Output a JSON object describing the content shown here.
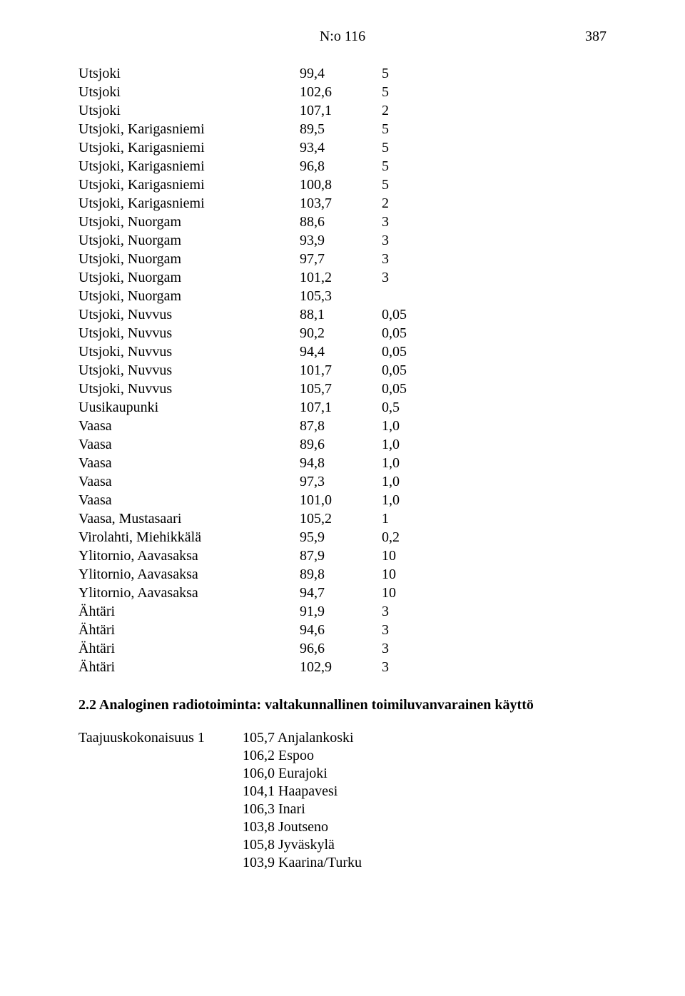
{
  "header": {
    "doc_number": "N:o 116",
    "page_number": "387"
  },
  "table": {
    "rows": [
      {
        "name": "Utsjoki",
        "v1": "99,4",
        "v2": "5"
      },
      {
        "name": "Utsjoki",
        "v1": "102,6",
        "v2": "5"
      },
      {
        "name": "Utsjoki",
        "v1": "107,1",
        "v2": "2"
      },
      {
        "name": "Utsjoki, Karigasniemi",
        "v1": "89,5",
        "v2": "5"
      },
      {
        "name": "Utsjoki, Karigasniemi",
        "v1": "93,4",
        "v2": "5"
      },
      {
        "name": "Utsjoki, Karigasniemi",
        "v1": "96,8",
        "v2": "5"
      },
      {
        "name": "Utsjoki, Karigasniemi",
        "v1": "100,8",
        "v2": "5"
      },
      {
        "name": "Utsjoki, Karigasniemi",
        "v1": "103,7",
        "v2": "2"
      },
      {
        "name": "Utsjoki, Nuorgam",
        "v1": "88,6",
        "v2": "3"
      },
      {
        "name": "Utsjoki, Nuorgam",
        "v1": "93,9",
        "v2": "3"
      },
      {
        "name": "Utsjoki, Nuorgam",
        "v1": "97,7",
        "v2": "3"
      },
      {
        "name": "Utsjoki, Nuorgam",
        "v1": "101,2",
        "v2": "3"
      },
      {
        "name": "Utsjoki, Nuorgam",
        "v1": "105,3",
        "v2": ""
      },
      {
        "name": "Utsjoki, Nuvvus",
        "v1": "88,1",
        "v2": "0,05"
      },
      {
        "name": "Utsjoki, Nuvvus",
        "v1": "90,2",
        "v2": "0,05"
      },
      {
        "name": "Utsjoki, Nuvvus",
        "v1": "94,4",
        "v2": "0,05"
      },
      {
        "name": "Utsjoki, Nuvvus",
        "v1": "101,7",
        "v2": "0,05"
      },
      {
        "name": "Utsjoki, Nuvvus",
        "v1": "105,7",
        "v2": "0,05"
      },
      {
        "name": "Uusikaupunki",
        "v1": "107,1",
        "v2": "0,5"
      },
      {
        "name": "Vaasa",
        "v1": "87,8",
        "v2": "1,0"
      },
      {
        "name": "Vaasa",
        "v1": "89,6",
        "v2": "1,0"
      },
      {
        "name": "Vaasa",
        "v1": "94,8",
        "v2": "1,0"
      },
      {
        "name": "Vaasa",
        "v1": "97,3",
        "v2": "1,0"
      },
      {
        "name": "Vaasa",
        "v1": "101,0",
        "v2": "1,0"
      },
      {
        "name": "Vaasa, Mustasaari",
        "v1": "105,2",
        "v2": "1"
      },
      {
        "name": "Virolahti, Miehikkälä",
        "v1": "95,9",
        "v2": "0,2"
      },
      {
        "name": "Ylitornio, Aavasaksa",
        "v1": "87,9",
        "v2": "10"
      },
      {
        "name": "Ylitornio, Aavasaksa",
        "v1": "89,8",
        "v2": "10"
      },
      {
        "name": "Ylitornio, Aavasaksa",
        "v1": "94,7",
        "v2": "10"
      },
      {
        "name": "Ähtäri",
        "v1": "91,9",
        "v2": "3"
      },
      {
        "name": "Ähtäri",
        "v1": "94,6",
        "v2": "3"
      },
      {
        "name": "Ähtäri",
        "v1": "96,6",
        "v2": "3"
      },
      {
        "name": "Ähtäri",
        "v1": "102,9",
        "v2": "3"
      }
    ]
  },
  "section_heading": "2.2 Analoginen radiotoiminta: valtakunnallinen toimiluvanvarainen käyttö",
  "freq": {
    "label": "Taajuuskokonaisuus 1",
    "items": [
      "105,7 Anjalankoski",
      "106,2 Espoo",
      "106,0 Eurajoki",
      "104,1 Haapavesi",
      "106,3 Inari",
      "103,8 Joutseno",
      "105,8 Jyväskylä",
      "103,9 Kaarina/Turku"
    ]
  }
}
